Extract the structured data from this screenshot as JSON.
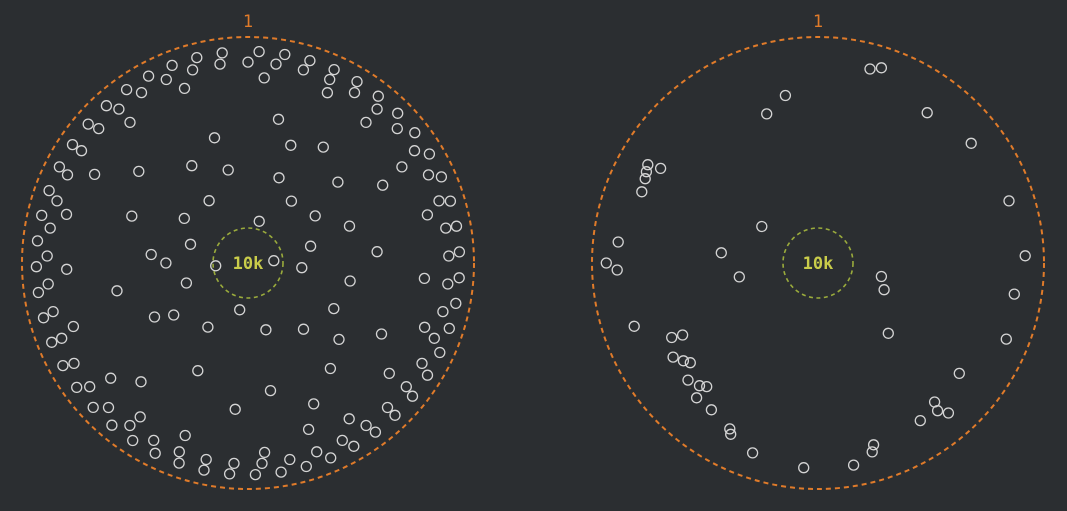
{
  "colors": {
    "background": "#2b2e31",
    "outer_ring": "#e07b2a",
    "inner_ring": "#9aab3c",
    "inner_label": "#c9cc4a",
    "points": "#d4d4d4"
  },
  "chart_data": [
    {
      "type": "scatter",
      "coordinate_system": "polar",
      "outer_label": "1",
      "inner_label": "10k",
      "points_theta_r": [
        [
          3,
          0.98
        ],
        [
          10,
          0.98
        ],
        [
          17,
          0.98
        ],
        [
          24,
          0.98
        ],
        [
          31,
          0.98
        ],
        [
          38,
          0.98
        ],
        [
          45,
          0.98
        ],
        [
          52,
          0.98
        ],
        [
          59,
          0.98
        ],
        [
          66,
          0.98
        ],
        [
          73,
          0.98
        ],
        [
          80,
          0.98
        ],
        [
          87,
          0.98
        ],
        [
          94,
          0.98
        ],
        [
          101,
          0.98
        ],
        [
          108,
          0.98
        ],
        [
          115,
          0.98
        ],
        [
          122,
          0.98
        ],
        [
          129,
          0.98
        ],
        [
          136,
          0.98
        ],
        [
          143,
          0.98
        ],
        [
          150,
          0.98
        ],
        [
          157,
          0.98
        ],
        [
          164,
          0.98
        ],
        [
          171,
          0.98
        ],
        [
          178,
          0.98
        ],
        [
          185,
          0.98
        ],
        [
          192,
          0.98
        ],
        [
          199,
          0.98
        ],
        [
          206,
          0.98
        ],
        [
          213,
          0.98
        ],
        [
          220,
          0.98
        ],
        [
          227,
          0.98
        ],
        [
          234,
          0.98
        ],
        [
          241,
          0.98
        ],
        [
          248,
          0.98
        ],
        [
          255,
          0.98
        ],
        [
          262,
          0.98
        ],
        [
          269,
          0.98
        ],
        [
          276,
          0.98
        ],
        [
          283,
          0.98
        ],
        [
          290,
          0.98
        ],
        [
          297,
          0.98
        ],
        [
          304,
          0.98
        ],
        [
          311,
          0.98
        ],
        [
          318,
          0.98
        ],
        [
          325,
          0.98
        ],
        [
          332,
          0.98
        ],
        [
          339,
          0.98
        ],
        [
          346,
          0.98
        ],
        [
          353,
          0.98
        ],
        [
          0,
          0.93
        ],
        [
          8,
          0.93
        ],
        [
          16,
          0.93
        ],
        [
          24,
          0.93
        ],
        [
          32,
          0.93
        ],
        [
          40,
          0.93
        ],
        [
          48,
          0.93
        ],
        [
          56,
          0.93
        ],
        [
          64,
          0.93
        ],
        [
          72,
          0.93
        ],
        [
          80,
          0.93
        ],
        [
          88,
          0.93
        ],
        [
          96,
          0.93
        ],
        [
          104,
          0.93
        ],
        [
          112,
          0.93
        ],
        [
          120,
          0.93
        ],
        [
          128,
          0.93
        ],
        [
          136,
          0.93
        ],
        [
          144,
          0.93
        ],
        [
          152,
          0.93
        ],
        [
          160,
          0.93
        ],
        [
          168,
          0.93
        ],
        [
          176,
          0.93
        ],
        [
          184,
          0.93
        ],
        [
          192,
          0.93
        ],
        [
          200,
          0.93
        ],
        [
          208,
          0.93
        ],
        [
          216,
          0.93
        ],
        [
          224,
          0.93
        ],
        [
          232,
          0.93
        ],
        [
          240,
          0.93
        ],
        [
          248,
          0.93
        ],
        [
          256,
          0.93
        ],
        [
          264,
          0.93
        ],
        [
          272,
          0.93
        ],
        [
          280,
          0.93
        ],
        [
          288,
          0.93
        ],
        [
          296,
          0.93
        ],
        [
          304,
          0.93
        ],
        [
          312,
          0.93
        ],
        [
          320,
          0.93
        ],
        [
          328,
          0.93
        ],
        [
          336,
          0.93
        ],
        [
          344,
          0.93
        ],
        [
          352,
          0.93
        ],
        [
          5,
          0.86
        ],
        [
          25,
          0.87
        ],
        [
          40,
          0.85
        ],
        [
          58,
          0.84
        ],
        [
          75,
          0.86
        ],
        [
          95,
          0.82
        ],
        [
          110,
          0.87
        ],
        [
          128,
          0.83
        ],
        [
          147,
          0.86
        ],
        [
          160,
          0.82
        ],
        [
          175,
          0.88
        ],
        [
          200,
          0.85
        ],
        [
          215,
          0.87
        ],
        [
          230,
          0.83
        ],
        [
          250,
          0.86
        ],
        [
          268,
          0.84
        ],
        [
          285,
          0.87
        ],
        [
          300,
          0.82
        ],
        [
          320,
          0.85
        ],
        [
          340,
          0.86
        ],
        [
          12,
          0.68
        ],
        [
          20,
          0.58
        ],
        [
          33,
          0.64
        ],
        [
          48,
          0.56
        ],
        [
          60,
          0.72
        ],
        [
          70,
          0.5
        ],
        [
          85,
          0.6
        ],
        [
          100,
          0.48
        ],
        [
          118,
          0.7
        ],
        [
          130,
          0.55
        ],
        [
          142,
          0.62
        ],
        [
          155,
          0.72
        ],
        [
          170,
          0.6
        ],
        [
          185,
          0.68
        ],
        [
          205,
          0.55
        ],
        [
          222,
          0.74
        ],
        [
          240,
          0.5
        ],
        [
          258,
          0.62
        ],
        [
          275,
          0.45
        ],
        [
          292,
          0.58
        ],
        [
          310,
          0.66
        ],
        [
          330,
          0.52
        ],
        [
          345,
          0.6
        ],
        [
          20,
          0.42
        ],
        [
          35,
          0.35
        ],
        [
          55,
          0.38
        ],
        [
          75,
          0.3
        ],
        [
          95,
          0.25
        ],
        [
          118,
          0.45
        ],
        [
          140,
          0.4
        ],
        [
          165,
          0.32
        ],
        [
          190,
          0.22
        ],
        [
          212,
          0.35
        ],
        [
          235,
          0.42
        ],
        [
          252,
          0.3
        ],
        [
          270,
          0.38
        ],
        [
          288,
          0.28
        ],
        [
          305,
          0.36
        ],
        [
          328,
          0.34
        ],
        [
          348,
          0.44
        ],
        [
          15,
          0.2
        ],
        [
          85,
          0.12
        ],
        [
          265,
          0.15
        ]
      ]
    },
    {
      "type": "scatter",
      "coordinate_system": "polar",
      "outer_label": "1",
      "inner_label": "10k",
      "points_theta_r": [
        [
          15,
          0.93
        ],
        [
          18,
          0.95
        ],
        [
          36,
          0.86
        ],
        [
          52,
          0.9
        ],
        [
          72,
          0.93
        ],
        [
          88,
          0.96
        ],
        [
          99,
          0.92
        ],
        [
          112,
          0.94
        ],
        [
          128,
          0.83
        ],
        [
          139,
          0.92
        ],
        [
          140,
          0.84
        ],
        [
          141,
          0.88
        ],
        [
          147,
          0.87
        ],
        [
          163,
          0.88
        ],
        [
          164,
          0.91
        ],
        [
          170,
          0.95
        ],
        [
          184,
          0.95
        ],
        [
          199,
          0.93
        ],
        [
          207,
          0.89
        ],
        [
          208,
          0.87
        ],
        [
          216,
          0.84
        ],
        [
          222,
          0.77
        ],
        [
          222,
          0.84
        ],
        [
          224,
          0.79
        ],
        [
          228,
          0.81
        ],
        [
          232,
          0.75
        ],
        [
          234,
          0.77
        ],
        [
          237,
          0.8
        ],
        [
          242,
          0.71
        ],
        [
          243,
          0.76
        ],
        [
          251,
          0.9
        ],
        [
          268,
          0.93
        ],
        [
          270,
          0.98
        ],
        [
          276,
          0.93
        ],
        [
          292,
          0.88
        ],
        [
          296,
          0.89
        ],
        [
          298,
          0.9
        ],
        [
          300,
          0.91
        ],
        [
          301,
          0.85
        ],
        [
          349,
          0.79
        ],
        [
          341,
          0.73
        ],
        [
          303,
          0.31
        ],
        [
          276,
          0.45
        ],
        [
          135,
          0.46
        ],
        [
          102,
          0.3
        ],
        [
          112,
          0.33
        ],
        [
          260,
          0.37
        ]
      ]
    }
  ]
}
